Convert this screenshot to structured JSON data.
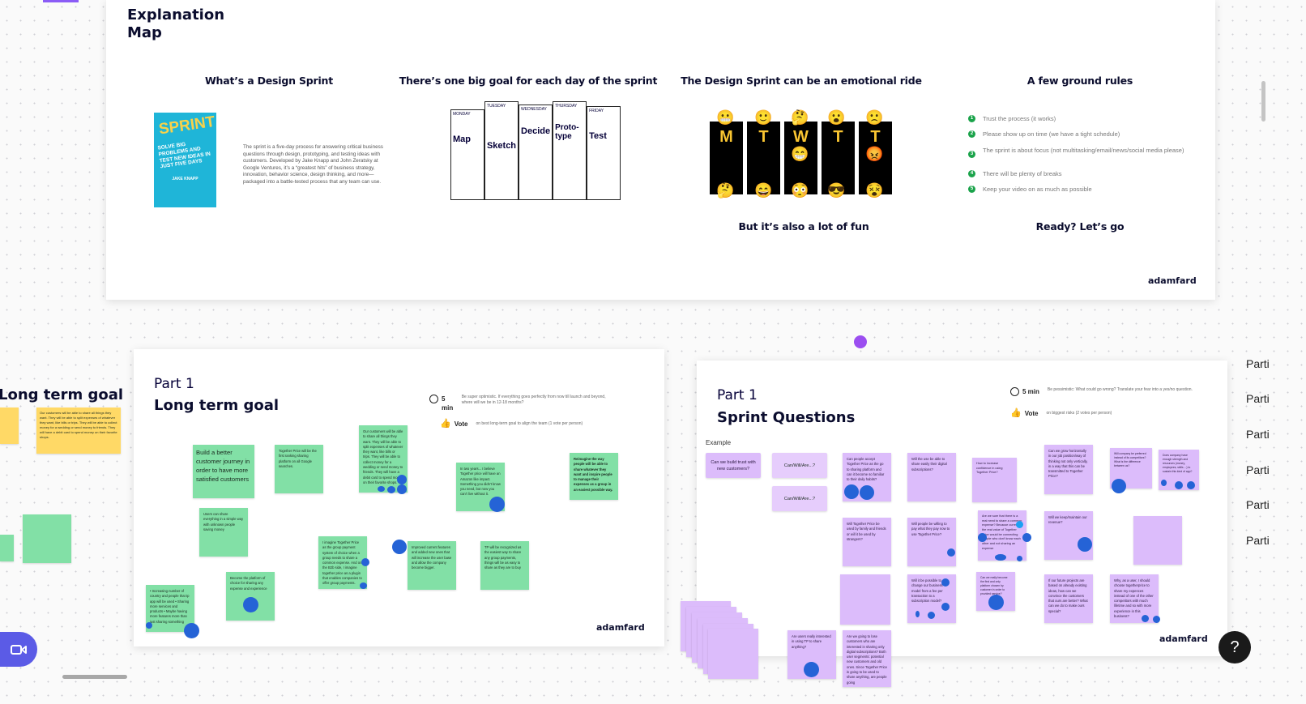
{
  "explanation": {
    "title_line1": "Explanation",
    "title_line2": "Map",
    "brand": "adamfard",
    "col1": {
      "heading": "What’s a Design Sprint",
      "paragraph": "The sprint is a five-day process for answering critical business questions through design, prototyping, and testing ideas with customers. Developed by Jake Knapp and John Zeratsky at Google Ventures, it’s a “greatest hits” of business strategy, innovation, behavior science, design thinking, and more—packaged into a battle-tested process that any team can use.",
      "book": {
        "title": "SPRINT",
        "subtitle": "SOLVE BIG PROBLEMS AND TEST NEW IDEAS IN JUST FIVE DAYS",
        "author": "JAKE KNAPP",
        "color": "#1fb5d8"
      }
    },
    "col2": {
      "heading": "There’s one big goal for each day of the sprint",
      "days": [
        "MONDAY",
        "TUESDAY",
        "WEDNESDAY",
        "THURSDAY",
        "FRIDAY"
      ],
      "goals": [
        "Map",
        "Sketch",
        "Decide",
        "Proto-type",
        "Test"
      ]
    },
    "col3": {
      "heading": "The Design Sprint can be an emotional ride",
      "letters": [
        "M",
        "T",
        "W",
        "T",
        "T"
      ],
      "subheading": "But it’s also a lot of fun"
    },
    "col4": {
      "heading": "A few ground rules",
      "rules": [
        "Trust the process (it works)",
        "Please show up on time (we have a tight schedule)",
        "The sprint is about focus (not multitasking/email/news/social media please)",
        "There will be plenty of breaks",
        "Keep your video on as much as possible"
      ],
      "closing": "Ready? Let’s go"
    }
  },
  "left_partial": {
    "title": "Long term goal",
    "yellow_note": "Our customers will be able to share all things they want. They will be able to split expenses of whatever they want, like bills or trips. They will be able to collect money for a wedding or send money to friends. They will have a debit card to spend money on their favorite shops."
  },
  "long_term": {
    "part": "Part 1",
    "title": "Long term goal",
    "timer": "5 min",
    "timer_text": "Be super optimistic. If everything goes perfectly from now till launch and beyond, where will we be in 12-18 months?",
    "vote": "Vote",
    "vote_text": "on best long-term goal to align the team (1 vote per person)",
    "brand": "adamfard",
    "notes": [
      "Build a better customer journey in order to have more satisfied customers",
      "Together Price will be the first ranking sharing platform on all Google searches.",
      "Our customers will be able to share all things they want. They will be able to split expenses of whatever they want, like bills or trips. They will be able to collect money for a wedding or send money to friends. They will have a debit card to spend money on their favorite shops.",
      "Users can share everything in a simple way with unknown people saving money",
      "Become the platform of choice for sharing any expense and experience",
      "• Increasing number of country and people that tp app will be used • Sharing more services and products • Maybe having more features more than just sharing something",
      "I imagine Together Price as the group payment system of choice when a group needs to share a common expense. And on the B2b side, I imagine together price as a plugin that enables companies to offer group payments.",
      "In two years... I believe Together price will have an Amazon like impact. Something you didn't know you need, but now you can't live without it.",
      "Improved current features and added new ones that will increase the user base and allow the company become bigger.",
      "TP will be recognized as the easiest way to share any group payments, things will be as easy to share as they are to buy",
      "Reimagine the way people will be able to share whatever they want and inspire people to manage their expenses as a group in an easiest possible way."
    ]
  },
  "sprint_q": {
    "part": "Part 1",
    "title": "Sprint Questions",
    "timer": "5 min",
    "timer_text": "Be pessimistic: What could go wrong? Translate your fear into a yes/no question.",
    "vote": "Vote",
    "vote_text": "on biggest risks (2 votes per person)",
    "example_label": "Example",
    "example": "Can we build trust with new customers?",
    "template": "Can/Will/Are...?",
    "brand": "adamfard",
    "notes": [
      "Can people accept Together Price as the go to sharing platform and can it become so familiar to their daily habits?",
      "Will the use be able to share easily their digital subscriptions?",
      "How to increase confidence in using Together Price?",
      "Can we grow horizontally in our job position/way of thinking not only vertically, in a way that this can be transmitted to Together Price?",
      "Will company be preferred instead of its competitors? What is the difference between us?",
      "Does company have enough strength and resources (money, employees, skills ...) to sustain this kind of app?",
      "Will Together Price be used by family and friends or will it be used by strangers?",
      "Will people be willing to pay what they pay now to use Together Price?",
      "Are we sure that there is a real need to share a common expense? Because currently the real value of Together Price would be connecting people who don't know each other and not sharing an expense",
      "Will we keep/maintain our revenue?",
      "Will it be possible to change our business model from a fee per transaction to a subscription model?",
      "Can we really become the first and only platform chosen by customer in order to provided service?",
      "If our future projects are based on already existing ideas, how can we convince the customers that ours are better? What can we do to make ours special?",
      "Why, as a user, I should choose togetherprice to share my expences instead of one of the other competitors with much lifetime and so with more experience in this business?",
      "Are users really interested in using TP to share anything?",
      "Are we going to lose customers who are interested in sharing only digital subscriptions? Both user segments: potential new customers and old ones. Since Together Price is going to be used to share anything, are people going"
    ]
  },
  "right_labels": [
    "Parti",
    "Parti",
    "Parti",
    "Parti",
    "Parti",
    "Parti"
  ],
  "controls": {
    "help": "?",
    "video_icon": "video-camera-icon"
  },
  "colors": {
    "sticky_green": "#82e0a6",
    "sticky_purple": "#dcbcfb",
    "sticky_yellow": "#ffd966",
    "vote_dot": "#2563d6",
    "accent": "#5b5be6"
  }
}
